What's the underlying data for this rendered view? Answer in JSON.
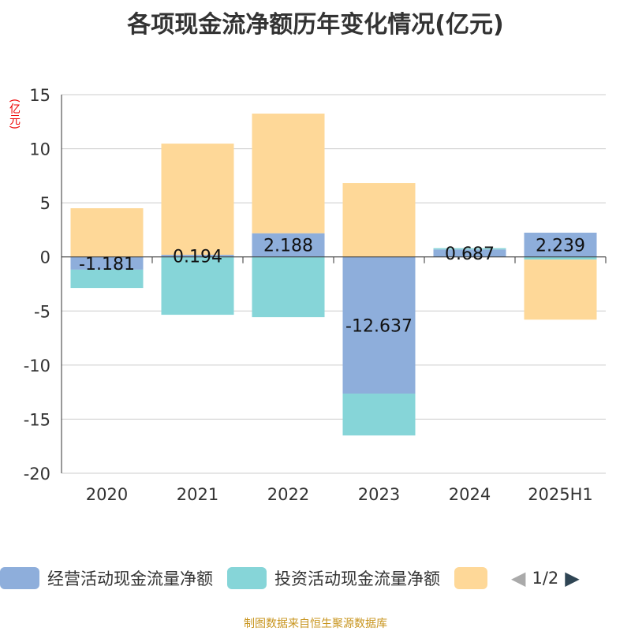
{
  "chart_data": {
    "type": "bar",
    "stacked": true,
    "title": "各项现金流净额历年变化情况(亿元)",
    "ylabel": "(亿元)",
    "categories": [
      "2020",
      "2021",
      "2022",
      "2023",
      "2024",
      "2025H1"
    ],
    "ylim": [
      -20,
      15
    ],
    "yticks": [
      15,
      10,
      5,
      0,
      -5,
      -10,
      -15,
      -20
    ],
    "grid": true,
    "legend_position": "bottom",
    "series": [
      {
        "name": "经营活动现金流量净额",
        "color": "#8eaedb",
        "values": [
          -1.181,
          0.194,
          2.188,
          -12.637,
          0.687,
          2.239
        ],
        "labels": [
          "-1.181",
          "0.194",
          "2.188",
          "-12.637",
          "0.687",
          "2.239"
        ]
      },
      {
        "name": "投资活动现金流量净额",
        "color": "#86d5d8",
        "values": [
          -1.69,
          -5.35,
          -5.57,
          -3.87,
          0.12,
          -0.25
        ]
      },
      {
        "color": "#fed898",
        "values": [
          4.5,
          10.28,
          11.06,
          6.83,
          0,
          -5.55
        ]
      }
    ]
  },
  "legend": {
    "page": "1/2"
  },
  "source": "制图数据来自恒生聚源数据库"
}
